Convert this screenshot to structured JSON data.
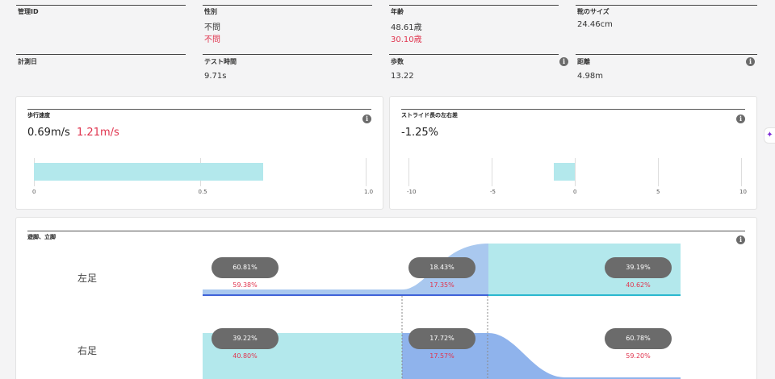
{
  "info": {
    "management_id": {
      "label": "管理ID",
      "value": ""
    },
    "gender": {
      "label": "性別",
      "value": "不問",
      "ref": "不問"
    },
    "age": {
      "label": "年齢",
      "value": "48.61歳",
      "ref": "30.10歳"
    },
    "shoe_size": {
      "label": "靴のサイズ",
      "value": "24.46cm"
    },
    "measure_date": {
      "label": "計測日",
      "value": ""
    },
    "test_time": {
      "label": "テスト時間",
      "value": "9.71s"
    },
    "steps": {
      "label": "歩数",
      "value": "13.22"
    },
    "distance": {
      "label": "距離",
      "value": "4.98m"
    }
  },
  "info_icon": "i",
  "assistant_icon": "sparkle-icon",
  "walking_speed": {
    "title": "歩行速度",
    "value": "0.69m/s",
    "ref": "1.21m/s",
    "bar_value": 0.69,
    "axis_min": 0,
    "axis_max": 1.0,
    "ticks": [
      "0",
      "0.5",
      "1.0"
    ],
    "bar_color": "#b3e8ec"
  },
  "stride_diff": {
    "title": "ストライド長の左右差",
    "value": "-1.25%",
    "bar_value": -1.25,
    "axis_min": -10,
    "axis_max": 10,
    "ticks": [
      "-10",
      "-5",
      "0",
      "5",
      "10"
    ]
  },
  "stance_swing": {
    "title": "遊脚、立脚",
    "left": {
      "label": "左足",
      "phases": [
        {
          "value": "60.81%",
          "ref": "59.38%"
        },
        {
          "value": "18.43%",
          "ref": "17.35%"
        },
        {
          "value": "39.19%",
          "ref": "40.62%"
        }
      ]
    },
    "right": {
      "label": "右足",
      "phases": [
        {
          "value": "39.22%",
          "ref": "40.80%"
        },
        {
          "value": "17.72%",
          "ref": "17.57%"
        },
        {
          "value": "60.78%",
          "ref": "59.20%"
        }
      ]
    },
    "colors": {
      "teal": "#b3e8ec",
      "blue": "#8fb3ec",
      "line": "#3f63d8"
    }
  }
}
